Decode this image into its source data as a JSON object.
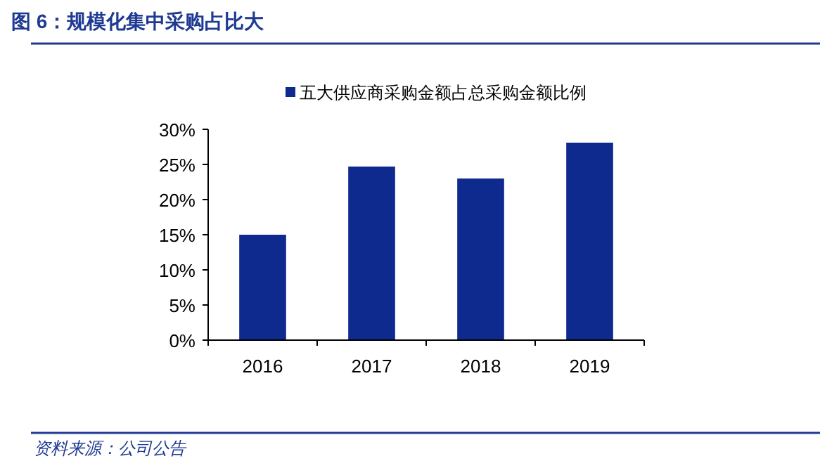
{
  "chart_data": {
    "type": "bar",
    "title": "图 6：规模化集中采购占比大",
    "categories": [
      "2016",
      "2017",
      "2018",
      "2019"
    ],
    "series": [
      {
        "name": "五大供应商采购金额占总采购金额比例",
        "color": "#0f2a8f",
        "values": [
          15.0,
          24.7,
          23.0,
          28.1
        ]
      }
    ],
    "ylim": [
      0,
      30
    ],
    "yticks": [
      {
        "value": 0,
        "label": "0%"
      },
      {
        "value": 5,
        "label": "5%"
      },
      {
        "value": 10,
        "label": "10%"
      },
      {
        "value": 15,
        "label": "15%"
      },
      {
        "value": 20,
        "label": "20%"
      },
      {
        "value": 25,
        "label": "25%"
      },
      {
        "value": 30,
        "label": "30%"
      }
    ],
    "legend": "top",
    "annotations": [
      "资料来源：公司公告"
    ]
  }
}
